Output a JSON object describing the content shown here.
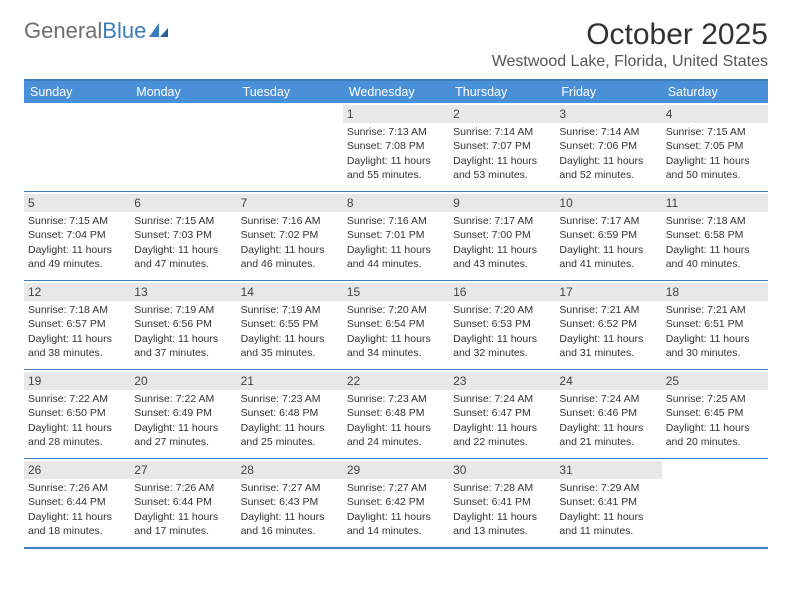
{
  "logo": {
    "part1": "General",
    "part2": "Blue"
  },
  "title": "October 2025",
  "location": "Westwood Lake, Florida, United States",
  "colors": {
    "header_bg": "#4a90d9",
    "border": "#3b7dbb",
    "daynum_bg": "#e8e8e8",
    "text": "#333333",
    "logo_gray": "#6f6f6f",
    "logo_blue": "#3b7dbb"
  },
  "weekdays": [
    "Sunday",
    "Monday",
    "Tuesday",
    "Wednesday",
    "Thursday",
    "Friday",
    "Saturday"
  ],
  "weeks": [
    [
      null,
      null,
      null,
      {
        "n": "1",
        "sr": "7:13 AM",
        "ss": "7:08 PM",
        "dl": "11 hours and 55 minutes."
      },
      {
        "n": "2",
        "sr": "7:14 AM",
        "ss": "7:07 PM",
        "dl": "11 hours and 53 minutes."
      },
      {
        "n": "3",
        "sr": "7:14 AM",
        "ss": "7:06 PM",
        "dl": "11 hours and 52 minutes."
      },
      {
        "n": "4",
        "sr": "7:15 AM",
        "ss": "7:05 PM",
        "dl": "11 hours and 50 minutes."
      }
    ],
    [
      {
        "n": "5",
        "sr": "7:15 AM",
        "ss": "7:04 PM",
        "dl": "11 hours and 49 minutes."
      },
      {
        "n": "6",
        "sr": "7:15 AM",
        "ss": "7:03 PM",
        "dl": "11 hours and 47 minutes."
      },
      {
        "n": "7",
        "sr": "7:16 AM",
        "ss": "7:02 PM",
        "dl": "11 hours and 46 minutes."
      },
      {
        "n": "8",
        "sr": "7:16 AM",
        "ss": "7:01 PM",
        "dl": "11 hours and 44 minutes."
      },
      {
        "n": "9",
        "sr": "7:17 AM",
        "ss": "7:00 PM",
        "dl": "11 hours and 43 minutes."
      },
      {
        "n": "10",
        "sr": "7:17 AM",
        "ss": "6:59 PM",
        "dl": "11 hours and 41 minutes."
      },
      {
        "n": "11",
        "sr": "7:18 AM",
        "ss": "6:58 PM",
        "dl": "11 hours and 40 minutes."
      }
    ],
    [
      {
        "n": "12",
        "sr": "7:18 AM",
        "ss": "6:57 PM",
        "dl": "11 hours and 38 minutes."
      },
      {
        "n": "13",
        "sr": "7:19 AM",
        "ss": "6:56 PM",
        "dl": "11 hours and 37 minutes."
      },
      {
        "n": "14",
        "sr": "7:19 AM",
        "ss": "6:55 PM",
        "dl": "11 hours and 35 minutes."
      },
      {
        "n": "15",
        "sr": "7:20 AM",
        "ss": "6:54 PM",
        "dl": "11 hours and 34 minutes."
      },
      {
        "n": "16",
        "sr": "7:20 AM",
        "ss": "6:53 PM",
        "dl": "11 hours and 32 minutes."
      },
      {
        "n": "17",
        "sr": "7:21 AM",
        "ss": "6:52 PM",
        "dl": "11 hours and 31 minutes."
      },
      {
        "n": "18",
        "sr": "7:21 AM",
        "ss": "6:51 PM",
        "dl": "11 hours and 30 minutes."
      }
    ],
    [
      {
        "n": "19",
        "sr": "7:22 AM",
        "ss": "6:50 PM",
        "dl": "11 hours and 28 minutes."
      },
      {
        "n": "20",
        "sr": "7:22 AM",
        "ss": "6:49 PM",
        "dl": "11 hours and 27 minutes."
      },
      {
        "n": "21",
        "sr": "7:23 AM",
        "ss": "6:48 PM",
        "dl": "11 hours and 25 minutes."
      },
      {
        "n": "22",
        "sr": "7:23 AM",
        "ss": "6:48 PM",
        "dl": "11 hours and 24 minutes."
      },
      {
        "n": "23",
        "sr": "7:24 AM",
        "ss": "6:47 PM",
        "dl": "11 hours and 22 minutes."
      },
      {
        "n": "24",
        "sr": "7:24 AM",
        "ss": "6:46 PM",
        "dl": "11 hours and 21 minutes."
      },
      {
        "n": "25",
        "sr": "7:25 AM",
        "ss": "6:45 PM",
        "dl": "11 hours and 20 minutes."
      }
    ],
    [
      {
        "n": "26",
        "sr": "7:26 AM",
        "ss": "6:44 PM",
        "dl": "11 hours and 18 minutes."
      },
      {
        "n": "27",
        "sr": "7:26 AM",
        "ss": "6:44 PM",
        "dl": "11 hours and 17 minutes."
      },
      {
        "n": "28",
        "sr": "7:27 AM",
        "ss": "6:43 PM",
        "dl": "11 hours and 16 minutes."
      },
      {
        "n": "29",
        "sr": "7:27 AM",
        "ss": "6:42 PM",
        "dl": "11 hours and 14 minutes."
      },
      {
        "n": "30",
        "sr": "7:28 AM",
        "ss": "6:41 PM",
        "dl": "11 hours and 13 minutes."
      },
      {
        "n": "31",
        "sr": "7:29 AM",
        "ss": "6:41 PM",
        "dl": "11 hours and 11 minutes."
      },
      null
    ]
  ],
  "labels": {
    "sunrise": "Sunrise:",
    "sunset": "Sunset:",
    "daylight": "Daylight:"
  }
}
